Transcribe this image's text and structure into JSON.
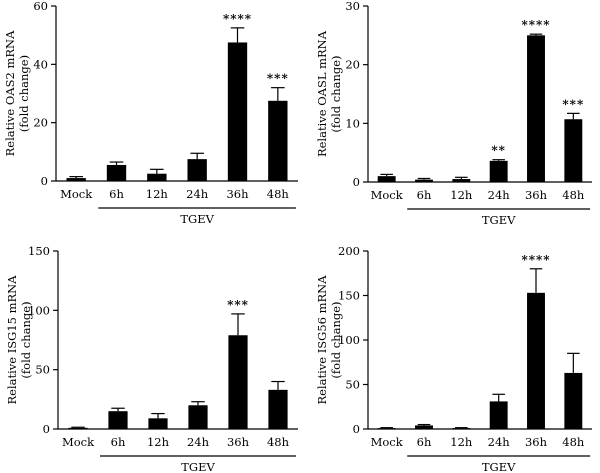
{
  "chart_data": [
    {
      "type": "bar",
      "categories": [
        "Mock",
        "6h",
        "12h",
        "24h",
        "36h",
        "48h"
      ],
      "values": [
        1,
        5.5,
        2.5,
        7.5,
        47.5,
        27.5
      ],
      "errors": [
        0.5,
        1,
        1.5,
        2,
        5,
        4.5
      ],
      "significance": [
        "",
        "",
        "",
        "",
        "****",
        "***"
      ],
      "ylabel": [
        "Relative OAS2 mRNA",
        "(fold change)"
      ],
      "ylim": [
        0,
        60
      ],
      "yticks": [
        "0",
        "20",
        "40",
        "60"
      ],
      "group_label": "TGEV",
      "color": "#000000"
    },
    {
      "type": "bar",
      "categories": [
        "Mock",
        "6h",
        "12h",
        "24h",
        "36h",
        "48h"
      ],
      "values": [
        1,
        0.4,
        0.5,
        3.6,
        25,
        10.7
      ],
      "errors": [
        0.3,
        0.2,
        0.3,
        0.2,
        0.2,
        1
      ],
      "significance": [
        "",
        "",
        "",
        "**",
        "****",
        "***"
      ],
      "ylabel": [
        "Relative OASL mRNA",
        "(fold change)"
      ],
      "ylim": [
        0,
        30
      ],
      "yticks": [
        "0",
        "10",
        "20",
        "30"
      ],
      "group_label": "TGEV",
      "color": "#000000"
    },
    {
      "type": "bar",
      "categories": [
        "Mock",
        "6h",
        "12h",
        "24h",
        "36h",
        "48h"
      ],
      "values": [
        1,
        15,
        9,
        20,
        79,
        33
      ],
      "errors": [
        0.5,
        2.5,
        4,
        3,
        18,
        7
      ],
      "significance": [
        "",
        "",
        "",
        "",
        "***",
        ""
      ],
      "ylabel": [
        "Relative ISG15 mRNA",
        "(fold change)"
      ],
      "ylim": [
        0,
        150
      ],
      "yticks": [
        "0",
        "50",
        "100",
        "150"
      ],
      "group_label": "TGEV",
      "color": "#000000"
    },
    {
      "type": "bar",
      "categories": [
        "Mock",
        "6h",
        "12h",
        "24h",
        "36h",
        "48h"
      ],
      "values": [
        1,
        4,
        1,
        31,
        153,
        63
      ],
      "errors": [
        0.5,
        1,
        0.5,
        8,
        27,
        22
      ],
      "significance": [
        "",
        "",
        "",
        "",
        "****",
        ""
      ],
      "ylabel": [
        "Relative ISG56 mRNA",
        "(fold change)"
      ],
      "ylim": [
        0,
        200
      ],
      "yticks": [
        "0",
        "50",
        "100",
        "150",
        "200"
      ],
      "group_label": "TGEV",
      "color": "#000000"
    }
  ]
}
